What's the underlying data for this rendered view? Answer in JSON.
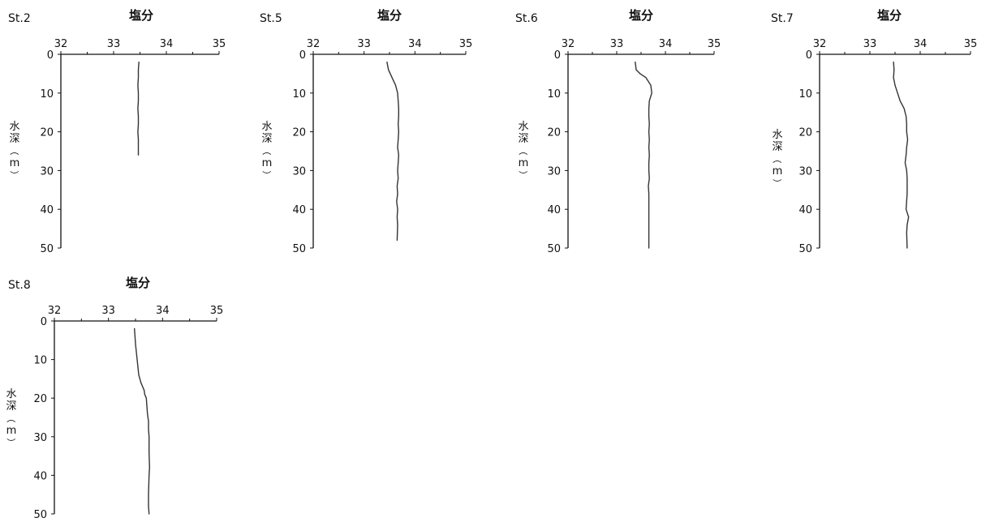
{
  "chart_data": [
    {
      "type": "line",
      "station": "St.2",
      "title": "塩分",
      "ylabel_chars": [
        "水",
        "深",
        "（",
        "m",
        "）"
      ],
      "xlim": [
        32,
        35
      ],
      "xticks": [
        32,
        33,
        34,
        35
      ],
      "xtick_labels": [
        "32",
        "33",
        "34",
        "35"
      ],
      "ylim": [
        0,
        50
      ],
      "yticks": [
        0,
        10,
        20,
        30,
        40,
        50
      ],
      "ytick_labels": [
        "0",
        "10",
        "20",
        "30",
        "40",
        "50"
      ],
      "y_inverted": true,
      "grid": false,
      "series": [
        {
          "color": "#333333",
          "x": [
            33.48,
            33.47,
            33.47,
            33.46,
            33.47,
            33.47,
            33.46,
            33.47,
            33.47,
            33.46,
            33.47,
            33.47,
            33.47
          ],
          "y": [
            2,
            4,
            6,
            8,
            10,
            12,
            14,
            16,
            18,
            20,
            22,
            24,
            26
          ]
        }
      ]
    },
    {
      "type": "line",
      "station": "St.5",
      "title": "塩分",
      "ylabel_chars": [
        "水",
        "深",
        "（",
        "m",
        "）"
      ],
      "xlim": [
        32,
        35
      ],
      "xticks": [
        32,
        33,
        34,
        35
      ],
      "xtick_labels": [
        "32",
        "33",
        "34",
        "35"
      ],
      "ylim": [
        0,
        50
      ],
      "yticks": [
        0,
        10,
        20,
        30,
        40,
        50
      ],
      "ytick_labels": [
        "0",
        "10",
        "20",
        "30",
        "40",
        "50"
      ],
      "y_inverted": true,
      "grid": false,
      "series": [
        {
          "color": "#333333",
          "x": [
            33.45,
            33.48,
            33.55,
            33.62,
            33.66,
            33.67,
            33.68,
            33.68,
            33.67,
            33.68,
            33.67,
            33.66,
            33.68,
            33.67,
            33.66,
            33.67,
            33.65,
            33.66,
            33.64,
            33.66,
            33.65,
            33.66,
            33.65
          ],
          "y": [
            2,
            4,
            6,
            8,
            10,
            12,
            14,
            16,
            18,
            20,
            22,
            24,
            26,
            28,
            30,
            32,
            34,
            36,
            38,
            40,
            42,
            44,
            48
          ]
        }
      ]
    },
    {
      "type": "line",
      "station": "St.6",
      "title": "塩分",
      "ylabel_chars": [
        "水",
        "深",
        "（",
        "m",
        "）"
      ],
      "xlim": [
        32,
        35
      ],
      "xticks": [
        32,
        33,
        34,
        35
      ],
      "xtick_labels": [
        "32",
        "33",
        "34",
        "35"
      ],
      "ylim": [
        0,
        50
      ],
      "yticks": [
        0,
        10,
        20,
        30,
        40,
        50
      ],
      "ytick_labels": [
        "0",
        "10",
        "20",
        "30",
        "40",
        "50"
      ],
      "y_inverted": true,
      "grid": false,
      "series": [
        {
          "color": "#333333",
          "x": [
            33.38,
            33.4,
            33.48,
            33.6,
            33.7,
            33.72,
            33.67,
            33.66,
            33.66,
            33.67,
            33.66,
            33.67,
            33.66,
            33.67,
            33.66,
            33.66,
            33.67,
            33.65,
            33.66,
            33.66,
            33.66,
            33.66,
            33.66,
            33.66
          ],
          "y": [
            2,
            4,
            5,
            6,
            8,
            10,
            12,
            14,
            16,
            18,
            20,
            22,
            24,
            26,
            28,
            30,
            32,
            34,
            36,
            38,
            40,
            42,
            44,
            50
          ]
        }
      ]
    },
    {
      "type": "line",
      "station": "St.7",
      "title": "塩分",
      "ylabel_chars": [
        "水",
        "深",
        "（",
        "m",
        "）"
      ],
      "xlim": [
        32,
        35
      ],
      "xticks": [
        32,
        33,
        34,
        35
      ],
      "xtick_labels": [
        "32",
        "33",
        "34",
        "35"
      ],
      "ylim": [
        0,
        50
      ],
      "yticks": [
        0,
        10,
        20,
        30,
        40,
        50
      ],
      "ytick_labels": [
        "0",
        "10",
        "20",
        "30",
        "40",
        "50"
      ],
      "y_inverted": true,
      "grid": false,
      "series": [
        {
          "color": "#333333",
          "x": [
            33.47,
            33.48,
            33.47,
            33.5,
            33.55,
            33.6,
            33.68,
            33.72,
            33.73,
            33.73,
            33.75,
            33.73,
            33.72,
            33.7,
            33.73,
            33.74,
            33.74,
            33.72,
            33.77,
            33.74,
            33.73,
            33.74
          ],
          "y": [
            2,
            4,
            6,
            8,
            10,
            12,
            14,
            16,
            18,
            20,
            22,
            24,
            26,
            28,
            30,
            32,
            36,
            40,
            42,
            44,
            46,
            50
          ]
        }
      ]
    },
    {
      "type": "line",
      "station": "St.8",
      "title": "塩分",
      "ylabel_chars": [
        "水",
        "深",
        "（",
        "m",
        "）"
      ],
      "xlim": [
        32,
        35
      ],
      "xticks": [
        32,
        33,
        34,
        35
      ],
      "xtick_labels": [
        "32",
        "33",
        "34",
        "35"
      ],
      "ylim": [
        0,
        50
      ],
      "yticks": [
        0,
        10,
        20,
        30,
        40,
        50
      ],
      "ytick_labels": [
        "0",
        "10",
        "20",
        "30",
        "40",
        "50"
      ],
      "y_inverted": true,
      "grid": false,
      "series": [
        {
          "color": "#333333",
          "x": [
            33.48,
            33.5,
            33.53,
            33.56,
            33.6,
            33.63,
            33.66,
            33.67,
            33.7,
            33.72,
            33.74,
            33.74,
            33.75,
            33.75,
            33.76,
            33.75,
            33.74,
            33.74,
            33.75
          ],
          "y": [
            2,
            6,
            10,
            14,
            16,
            17,
            18,
            19,
            20,
            24,
            26,
            28,
            30,
            34,
            38,
            40,
            45,
            48,
            50
          ]
        }
      ]
    }
  ]
}
